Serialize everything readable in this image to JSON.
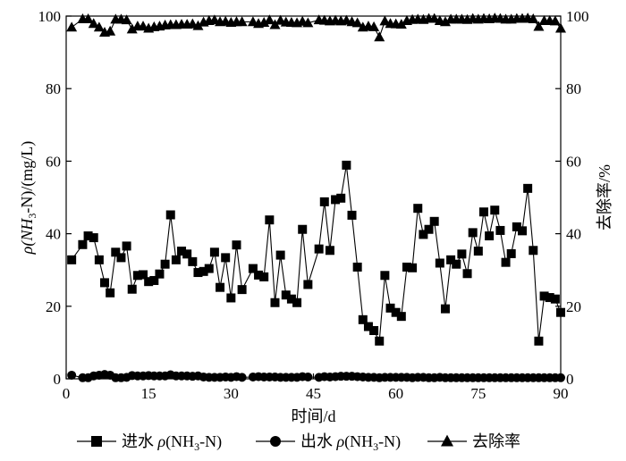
{
  "chart_data": {
    "type": "line",
    "xlabel": "时间/d",
    "ylabel_left": "ρ(NH3-N)/(mg/L)",
    "ylabel_left_parts": {
      "pre": "ρ(NH",
      "sub": "3",
      "post": "-N)/(mg/L)"
    },
    "ylabel_right": "去除率/%",
    "xlim": [
      0,
      90
    ],
    "ylim_left": [
      0,
      100
    ],
    "ylim_right": [
      0,
      100
    ],
    "xticks": [
      0,
      15,
      30,
      45,
      60,
      75,
      90
    ],
    "yticks_left": [
      0,
      20,
      40,
      60,
      80,
      100
    ],
    "yticks_right": [
      0,
      20,
      40,
      60,
      80,
      100
    ],
    "grid": false,
    "legend_position": "bottom",
    "series": [
      {
        "name": "进水 ρ(NH3-N)",
        "legend_parts": {
          "pre": "进水 ρ(NH",
          "sub": "3",
          "post": "-N)"
        },
        "marker": "square",
        "axis": "left",
        "x": [
          1,
          3,
          4,
          5,
          6,
          7,
          8,
          9,
          10,
          11,
          12,
          13,
          14,
          15,
          16,
          17,
          18,
          19,
          20,
          21,
          22,
          23,
          24,
          25,
          26,
          27,
          28,
          29,
          30,
          31,
          32,
          34,
          35,
          36,
          37,
          38,
          39,
          40,
          41,
          42,
          43,
          44,
          46,
          47,
          48,
          49,
          50,
          51,
          52,
          53,
          54,
          55,
          56,
          57,
          58,
          59,
          60,
          61,
          62,
          63,
          64,
          65,
          66,
          67,
          68,
          69,
          70,
          71,
          72,
          73,
          74,
          75,
          76,
          77,
          78,
          79,
          80,
          81,
          82,
          83,
          84,
          85,
          86,
          87,
          88,
          89,
          90
        ],
        "y": [
          32.8,
          37.0,
          39.4,
          38.9,
          32.8,
          26.5,
          23.7,
          34.9,
          33.4,
          36.6,
          24.7,
          28.5,
          28.7,
          26.8,
          27.1,
          28.9,
          31.6,
          45.2,
          32.8,
          35.2,
          34.4,
          32.3,
          29.3,
          29.6,
          30.4,
          34.9,
          25.2,
          33.4,
          22.3,
          36.9,
          24.6,
          30.4,
          28.6,
          28.1,
          43.8,
          21.0,
          34.1,
          23.1,
          22.0,
          21.0,
          41.2,
          26.0,
          35.8,
          48.8,
          35.4,
          49.4,
          49.8,
          58.9,
          45.1,
          30.8,
          16.3,
          14.4,
          13.3,
          10.4,
          28.5,
          19.5,
          18.3,
          17.2,
          30.8,
          30.6,
          47.0,
          39.8,
          41.2,
          43.4,
          31.9,
          19.3,
          32.8,
          31.6,
          34.4,
          29.0,
          40.3,
          35.2,
          46.0,
          39.4,
          46.5,
          40.9,
          32.1,
          34.5,
          41.9,
          40.8,
          52.5,
          35.4,
          10.4,
          22.8,
          22.4,
          22.0,
          18.3
        ]
      },
      {
        "name": "出水 ρ(NH3-N)",
        "legend_parts": {
          "pre": "出水 ρ(NH",
          "sub": "3",
          "post": "-N)"
        },
        "marker": "circle",
        "axis": "left",
        "x": [
          1,
          3,
          4,
          5,
          6,
          7,
          8,
          9,
          10,
          11,
          12,
          13,
          14,
          15,
          16,
          17,
          18,
          19,
          20,
          21,
          22,
          23,
          24,
          25,
          26,
          27,
          28,
          29,
          30,
          31,
          32,
          34,
          35,
          36,
          37,
          38,
          39,
          40,
          41,
          42,
          43,
          44,
          46,
          47,
          48,
          49,
          50,
          51,
          52,
          53,
          54,
          55,
          56,
          57,
          58,
          59,
          60,
          61,
          62,
          63,
          64,
          65,
          66,
          67,
          68,
          69,
          70,
          71,
          72,
          73,
          74,
          75,
          76,
          77,
          78,
          79,
          80,
          81,
          82,
          83,
          84,
          85,
          86,
          87,
          88,
          89,
          90
        ],
        "y": [
          1.0,
          0.3,
          0.3,
          0.8,
          1.0,
          1.2,
          1.0,
          0.3,
          0.3,
          0.4,
          0.9,
          0.8,
          0.8,
          0.9,
          0.8,
          0.8,
          0.8,
          1.1,
          0.8,
          0.8,
          0.8,
          0.7,
          0.8,
          0.5,
          0.4,
          0.4,
          0.4,
          0.5,
          0.4,
          0.6,
          0.4,
          0.5,
          0.6,
          0.5,
          0.5,
          0.5,
          0.4,
          0.4,
          0.4,
          0.4,
          0.6,
          0.5,
          0.4,
          0.6,
          0.5,
          0.6,
          0.7,
          0.7,
          0.7,
          0.6,
          0.5,
          0.4,
          0.4,
          0.3,
          0.4,
          0.4,
          0.4,
          0.4,
          0.4,
          0.3,
          0.4,
          0.4,
          0.3,
          0.3,
          0.4,
          0.3,
          0.3,
          0.3,
          0.3,
          0.3,
          0.3,
          0.3,
          0.3,
          0.3,
          0.3,
          0.3,
          0.3,
          0.3,
          0.3,
          0.3,
          0.3,
          0.3,
          0.3,
          0.3,
          0.3,
          0.3,
          0.3
        ]
      },
      {
        "name": "去除率",
        "legend_parts": {
          "pre": "去除率",
          "sub": "",
          "post": ""
        },
        "marker": "triangle",
        "axis": "right",
        "x": [
          1,
          3,
          4,
          5,
          6,
          7,
          8,
          9,
          10,
          11,
          12,
          13,
          14,
          15,
          16,
          17,
          18,
          19,
          20,
          21,
          22,
          23,
          24,
          25,
          26,
          27,
          28,
          29,
          30,
          31,
          32,
          34,
          35,
          36,
          37,
          38,
          39,
          40,
          41,
          42,
          43,
          44,
          46,
          47,
          48,
          49,
          50,
          51,
          52,
          53,
          54,
          55,
          56,
          57,
          58,
          59,
          60,
          61,
          62,
          63,
          64,
          65,
          66,
          67,
          68,
          69,
          70,
          71,
          72,
          73,
          74,
          75,
          76,
          77,
          78,
          79,
          80,
          81,
          82,
          83,
          84,
          85,
          86,
          87,
          88,
          89,
          90
        ],
        "y": [
          96.9,
          99.2,
          99.2,
          97.9,
          96.9,
          95.5,
          95.8,
          99.1,
          99.1,
          98.9,
          96.4,
          97.2,
          97.2,
          96.6,
          97.0,
          97.2,
          97.5,
          97.6,
          97.6,
          97.7,
          97.7,
          97.8,
          97.3,
          98.3,
          98.7,
          98.9,
          98.4,
          98.5,
          98.2,
          98.4,
          98.4,
          98.4,
          97.9,
          98.2,
          98.9,
          97.6,
          98.8,
          98.3,
          98.2,
          98.1,
          98.5,
          98.1,
          98.9,
          98.8,
          98.6,
          98.8,
          98.6,
          98.8,
          98.4,
          98.1,
          96.9,
          97.2,
          97.0,
          94.2,
          98.6,
          97.9,
          97.8,
          97.7,
          98.7,
          99.0,
          99.1,
          99.0,
          99.3,
          99.3,
          98.7,
          98.4,
          99.1,
          99.1,
          99.1,
          99.0,
          99.3,
          99.1,
          99.3,
          99.2,
          99.4,
          99.3,
          99.1,
          99.1,
          99.3,
          99.3,
          99.4,
          99.2,
          97.1,
          98.7,
          98.7,
          98.6,
          96.6
        ]
      }
    ]
  }
}
